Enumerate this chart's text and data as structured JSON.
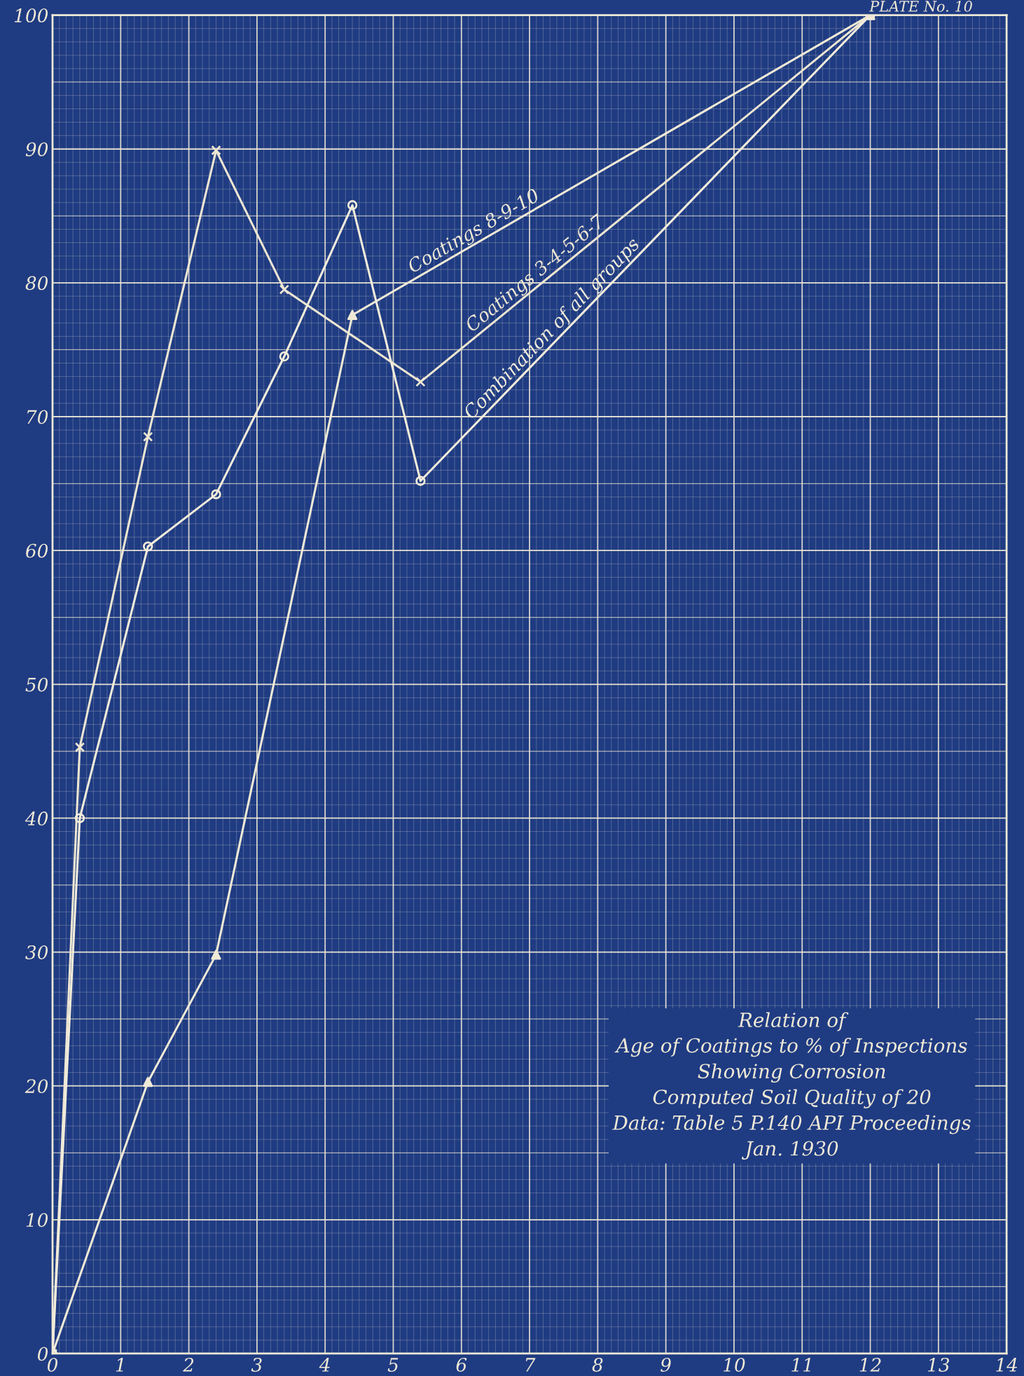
{
  "chart_data": {
    "type": "line",
    "title": "PLATE No. 10",
    "series": [
      {
        "name": "Coatings 8-9-10",
        "color": "#efe9d6",
        "marker": "triangle",
        "x": [
          0,
          1.4,
          2.4,
          4.4,
          12
        ],
        "values": [
          0,
          20.3,
          29.8,
          77.6,
          100
        ]
      },
      {
        "name": "Coatings 3-4-5-6-7",
        "color": "#ede6d2",
        "marker": "cross",
        "x": [
          0,
          0.4,
          1.4,
          2.4,
          3.4,
          5.4,
          12
        ],
        "values": [
          0,
          45.3,
          68.5,
          89.9,
          79.5,
          72.6,
          100
        ]
      },
      {
        "name": "Combination of all groups",
        "color": "#f2ecdb",
        "marker": "circle",
        "x": [
          0,
          0.4,
          1.4,
          2.4,
          3.4,
          4.4,
          5.4,
          12
        ],
        "values": [
          0,
          40,
          60.3,
          64.2,
          74.5,
          85.8,
          65.2,
          100
        ]
      }
    ],
    "xlim": [
      0,
      14
    ],
    "xticks": [
      0,
      1,
      2,
      3,
      4,
      5,
      6,
      7,
      8,
      9,
      10,
      11,
      12,
      13,
      14
    ],
    "ylim": [
      0,
      100
    ],
    "yticks": [
      0,
      10,
      20,
      30,
      40,
      50,
      60,
      70,
      80,
      90,
      100
    ],
    "grid": true,
    "line_style": "solid",
    "annotations": [
      "Relation of\nAge of Coatings to % of Inspections\nShowing Corrosion\nComputed Soil Quality of 20\nData: Table 5 P.140 API Proceedings\nJan. 1930"
    ]
  }
}
